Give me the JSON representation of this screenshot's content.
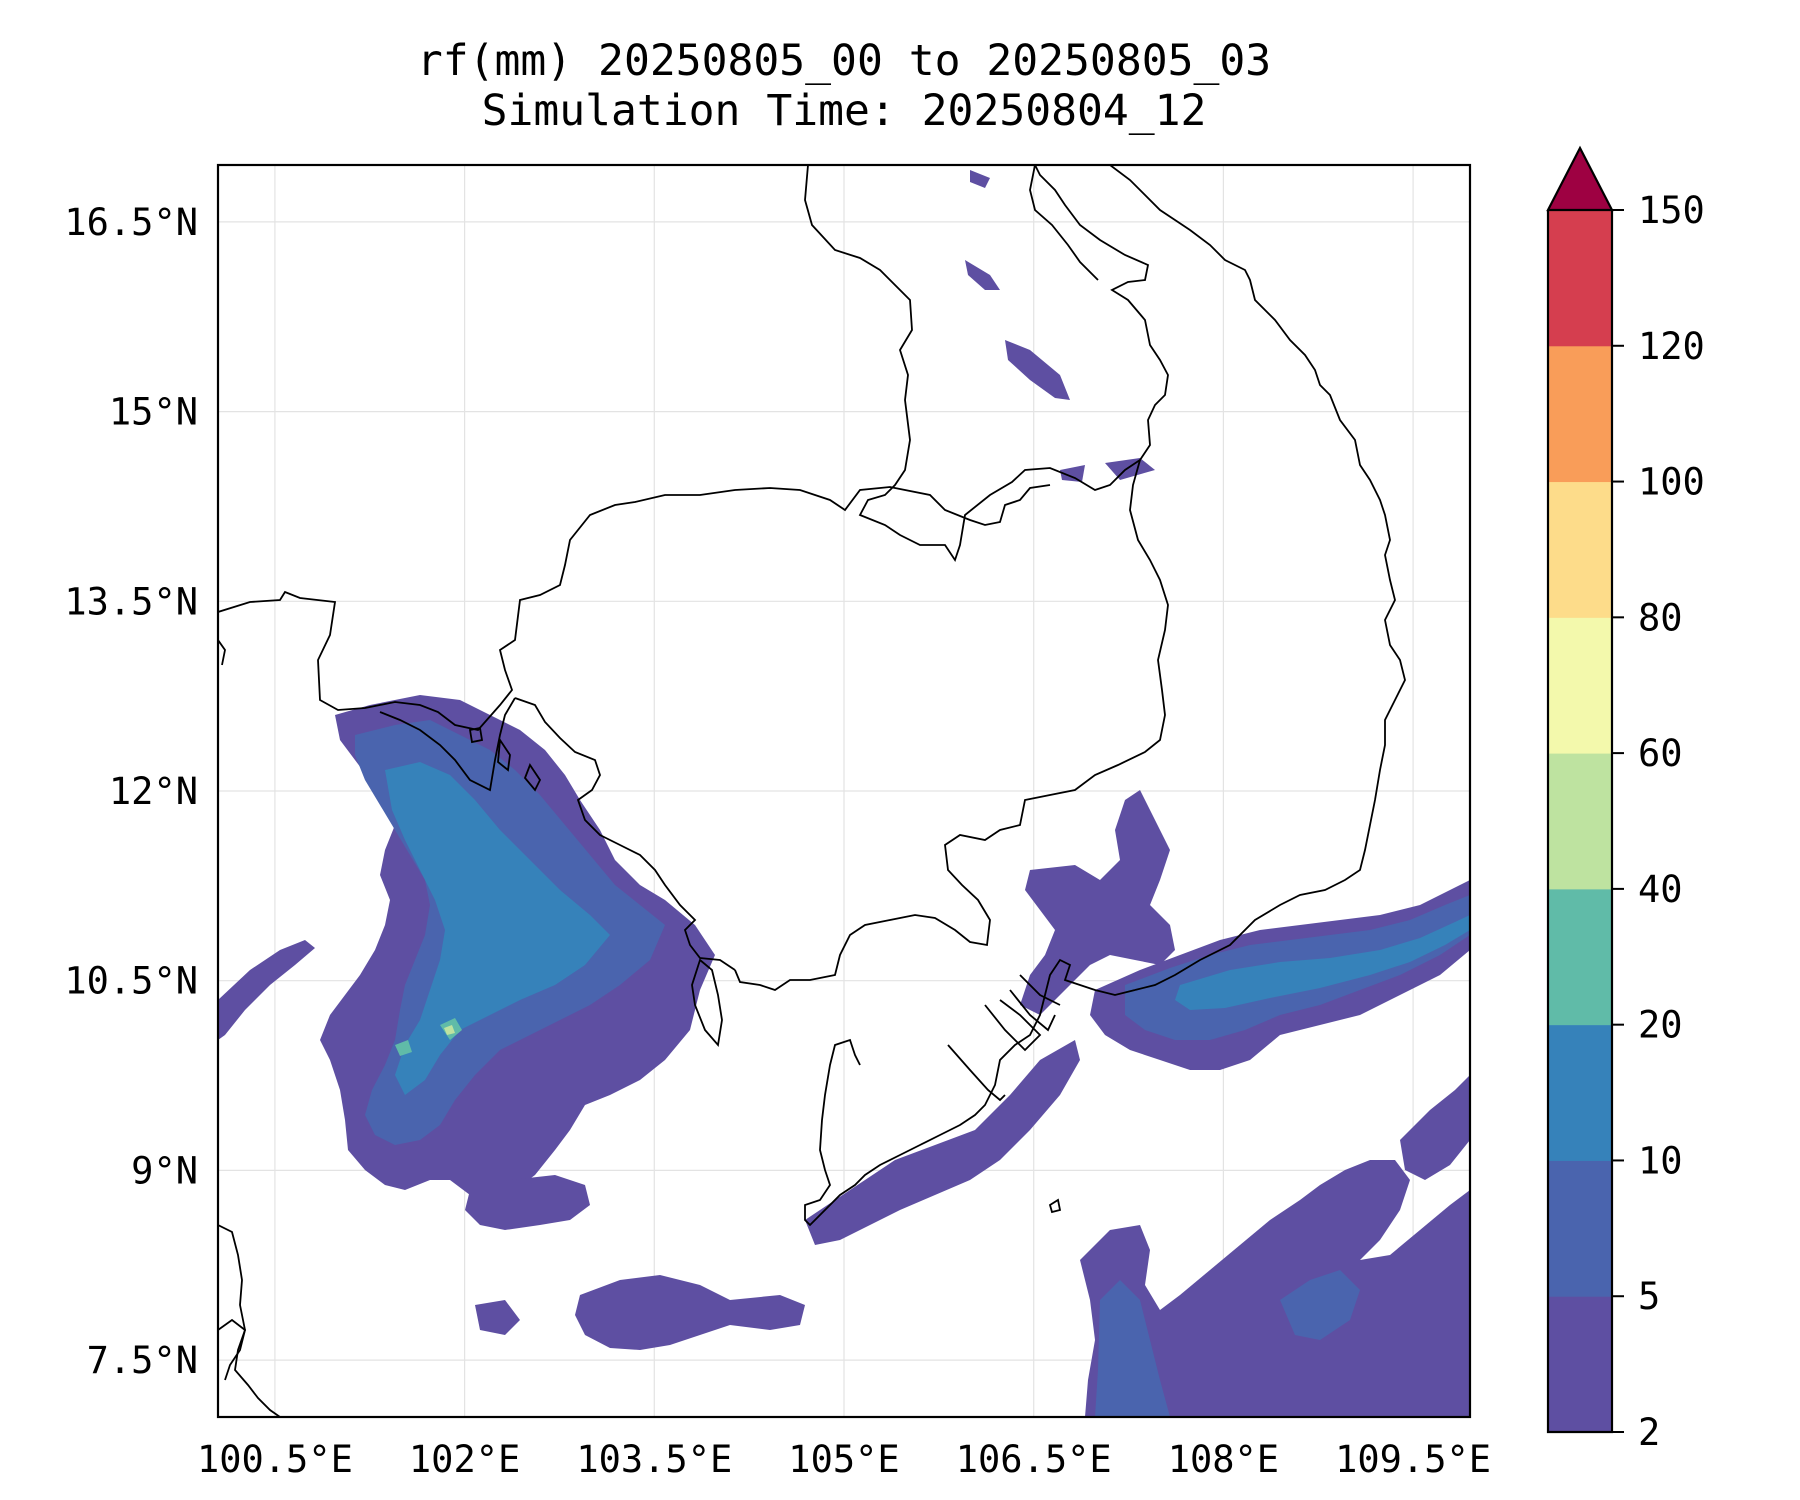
{
  "title": {
    "line1": "rf(mm) 20250805_00 to 20250805_03",
    "line2": "Simulation Time: 20250804_12"
  },
  "map": {
    "lon_range": [
      100.05,
      109.95
    ],
    "lat_range": [
      7.05,
      16.95
    ],
    "gridlines": true,
    "lon_ticks": [
      {
        "value": 100.5,
        "label": "100.5°E"
      },
      {
        "value": 102,
        "label": "102°E"
      },
      {
        "value": 103.5,
        "label": "103.5°E"
      },
      {
        "value": 105,
        "label": "105°E"
      },
      {
        "value": 106.5,
        "label": "106.5°E"
      },
      {
        "value": 108,
        "label": "108°E"
      },
      {
        "value": 109.5,
        "label": "109.5°E"
      }
    ],
    "lat_ticks": [
      {
        "value": 16.5,
        "label": "16.5°N"
      },
      {
        "value": 15,
        "label": "15°N"
      },
      {
        "value": 13.5,
        "label": "13.5°N"
      },
      {
        "value": 12,
        "label": "12°N"
      },
      {
        "value": 10.5,
        "label": "10.5°N"
      },
      {
        "value": 9,
        "label": "9°N"
      },
      {
        "value": 7.5,
        "label": "7.5°N"
      }
    ]
  },
  "colorbar": {
    "extend": "max",
    "extend_color": "#9e0142",
    "levels": [
      {
        "value": 2,
        "label": "2"
      },
      {
        "value": 5,
        "label": "5"
      },
      {
        "value": 10,
        "label": "10"
      },
      {
        "value": 20,
        "label": "20"
      },
      {
        "value": 40,
        "label": "40"
      },
      {
        "value": 60,
        "label": "60"
      },
      {
        "value": 80,
        "label": "80"
      },
      {
        "value": 100,
        "label": "100"
      },
      {
        "value": 120,
        "label": "120"
      },
      {
        "value": 150,
        "label": "150"
      }
    ],
    "colors": [
      "#5e4fa2",
      "#4a64ae",
      "#3682ba",
      "#60bba8",
      "#bee3a0",
      "#f3f9ac",
      "#fddc8a",
      "#f99d59",
      "#d53e4f"
    ]
  }
}
